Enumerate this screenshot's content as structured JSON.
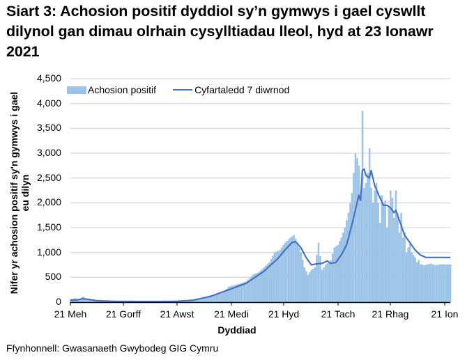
{
  "title": "Siart 3: Achosion positif dyddiol sy’n gymwys i gael cyswllt dilynol gan dimau olrhain cysylltiadau lleol, hyd at 23 Ionawr 2021",
  "source": "Ffynhonnell: Gwasanaeth Gwybodeg GIG Cymru",
  "colors": {
    "bars": "#9dc3e6",
    "line": "#4472c4",
    "grid": "#d9d9d9",
    "axis": "#000000"
  },
  "chart_data": {
    "type": "bar",
    "title": "Siart 3: Achosion positif dyddiol sy’n gymwys i gael cyswllt dilynol gan dimau olrhain cysylltiadau lleol, hyd at 23 Ionawr 2021",
    "xlabel": "Dyddiad",
    "ylabel": "Nifer yr achosion positif sy'n gymwys i gael eu dilyn",
    "ylim": [
      0,
      4500
    ],
    "yticks": [
      "0",
      "500",
      "1,000",
      "1,500",
      "2,000",
      "2,500",
      "3,000",
      "3,500",
      "4,000",
      "4,500"
    ],
    "xticks": [
      "21 Meh",
      "21 Gorff",
      "21 Awst",
      "21 Medi",
      "21 Hyd",
      "21 Tach",
      "21 Rhag",
      "21 Ion"
    ],
    "grid": true,
    "legend": {
      "position": "top-left",
      "entries": [
        "Achosion positif",
        "Cyfartaledd 7 diwrnod"
      ]
    },
    "x_start": "21 Meh 2020",
    "x_end": "23 Ion 2021",
    "series": [
      {
        "name": "Achosion positif",
        "type": "bar",
        "keypoints": [
          [
            0,
            60
          ],
          [
            3,
            80
          ],
          [
            5,
            40
          ],
          [
            7,
            110
          ],
          [
            10,
            50
          ],
          [
            14,
            30
          ],
          [
            20,
            20
          ],
          [
            30,
            15
          ],
          [
            45,
            15
          ],
          [
            60,
            20
          ],
          [
            62,
            40
          ],
          [
            65,
            30
          ],
          [
            70,
            50
          ],
          [
            75,
            90
          ],
          [
            80,
            140
          ],
          [
            85,
            170
          ],
          [
            88,
            230
          ],
          [
            90,
            310
          ],
          [
            93,
            340
          ],
          [
            97,
            380
          ],
          [
            100,
            420
          ],
          [
            104,
            560
          ],
          [
            107,
            600
          ],
          [
            110,
            700
          ],
          [
            113,
            800
          ],
          [
            116,
            1000
          ],
          [
            119,
            1050
          ],
          [
            122,
            1200
          ],
          [
            125,
            1300
          ],
          [
            127,
            1350
          ],
          [
            129,
            1200
          ],
          [
            131,
            1000
          ],
          [
            133,
            700
          ],
          [
            135,
            550
          ],
          [
            137,
            650
          ],
          [
            139,
            700
          ],
          [
            141,
            1200
          ],
          [
            143,
            650
          ],
          [
            145,
            750
          ],
          [
            148,
            850
          ],
          [
            150,
            1100
          ],
          [
            152,
            1150
          ],
          [
            154,
            1300
          ],
          [
            156,
            1500
          ],
          [
            158,
            1800
          ],
          [
            160,
            2200
          ],
          [
            161,
            2600
          ],
          [
            162,
            3000
          ],
          [
            163,
            2900
          ],
          [
            164,
            2750
          ],
          [
            165,
            2200
          ],
          [
            166,
            3850
          ],
          [
            167,
            2300
          ],
          [
            168,
            2400
          ],
          [
            169,
            2600
          ],
          [
            170,
            3100
          ],
          [
            171,
            2300
          ],
          [
            172,
            2000
          ],
          [
            173,
            2250
          ],
          [
            174,
            2400
          ],
          [
            175,
            2000
          ],
          [
            176,
            1600
          ],
          [
            177,
            2150
          ],
          [
            178,
            2000
          ],
          [
            179,
            2050
          ],
          [
            180,
            1500
          ],
          [
            181,
            1900
          ],
          [
            182,
            2250
          ],
          [
            183,
            2100
          ],
          [
            184,
            1700
          ],
          [
            185,
            2250
          ],
          [
            186,
            1800
          ],
          [
            187,
            1400
          ],
          [
            188,
            1800
          ],
          [
            189,
            1300
          ],
          [
            190,
            1400
          ],
          [
            191,
            1000
          ],
          [
            192,
            1100
          ],
          [
            193,
            1200
          ],
          [
            194,
            1000
          ],
          [
            195,
            950
          ],
          [
            196,
            900
          ],
          [
            197,
            800
          ],
          [
            198,
            850
          ],
          [
            199,
            760
          ],
          [
            200,
            760
          ],
          [
            201,
            740
          ],
          [
            202,
            750
          ],
          [
            203,
            760
          ],
          [
            204,
            770
          ],
          [
            205,
            780
          ],
          [
            206,
            760
          ],
          [
            207,
            750
          ],
          [
            208,
            750
          ],
          [
            209,
            750
          ],
          [
            210,
            760
          ],
          [
            211,
            760
          ],
          [
            212,
            760
          ],
          [
            213,
            760
          ],
          [
            214,
            760
          ],
          [
            215,
            760
          ],
          [
            216,
            760
          ]
        ]
      },
      {
        "name": "Cyfartaledd 7 diwrnod",
        "type": "line",
        "keypoints": [
          [
            0,
            40
          ],
          [
            4,
            45
          ],
          [
            7,
            70
          ],
          [
            10,
            55
          ],
          [
            15,
            30
          ],
          [
            25,
            15
          ],
          [
            45,
            12
          ],
          [
            60,
            15
          ],
          [
            70,
            40
          ],
          [
            80,
            120
          ],
          [
            90,
            250
          ],
          [
            100,
            380
          ],
          [
            110,
            620
          ],
          [
            118,
            880
          ],
          [
            122,
            1050
          ],
          [
            126,
            1200
          ],
          [
            128,
            1220
          ],
          [
            131,
            1100
          ],
          [
            134,
            900
          ],
          [
            137,
            750
          ],
          [
            140,
            770
          ],
          [
            143,
            780
          ],
          [
            146,
            830
          ],
          [
            148,
            780
          ],
          [
            151,
            800
          ],
          [
            154,
            950
          ],
          [
            157,
            1150
          ],
          [
            160,
            1550
          ],
          [
            162,
            1850
          ],
          [
            164,
            2150
          ],
          [
            165,
            2050
          ],
          [
            166,
            2650
          ],
          [
            167,
            2680
          ],
          [
            168,
            2550
          ],
          [
            170,
            2500
          ],
          [
            171,
            2650
          ],
          [
            173,
            2350
          ],
          [
            176,
            2100
          ],
          [
            178,
            1950
          ],
          [
            180,
            1950
          ],
          [
            182,
            1900
          ],
          [
            184,
            1800
          ],
          [
            185,
            1850
          ],
          [
            186,
            1750
          ],
          [
            188,
            1550
          ],
          [
            190,
            1350
          ],
          [
            193,
            1200
          ],
          [
            196,
            1050
          ],
          [
            199,
            950
          ],
          [
            202,
            900
          ],
          [
            216,
            900
          ]
        ]
      }
    ]
  }
}
